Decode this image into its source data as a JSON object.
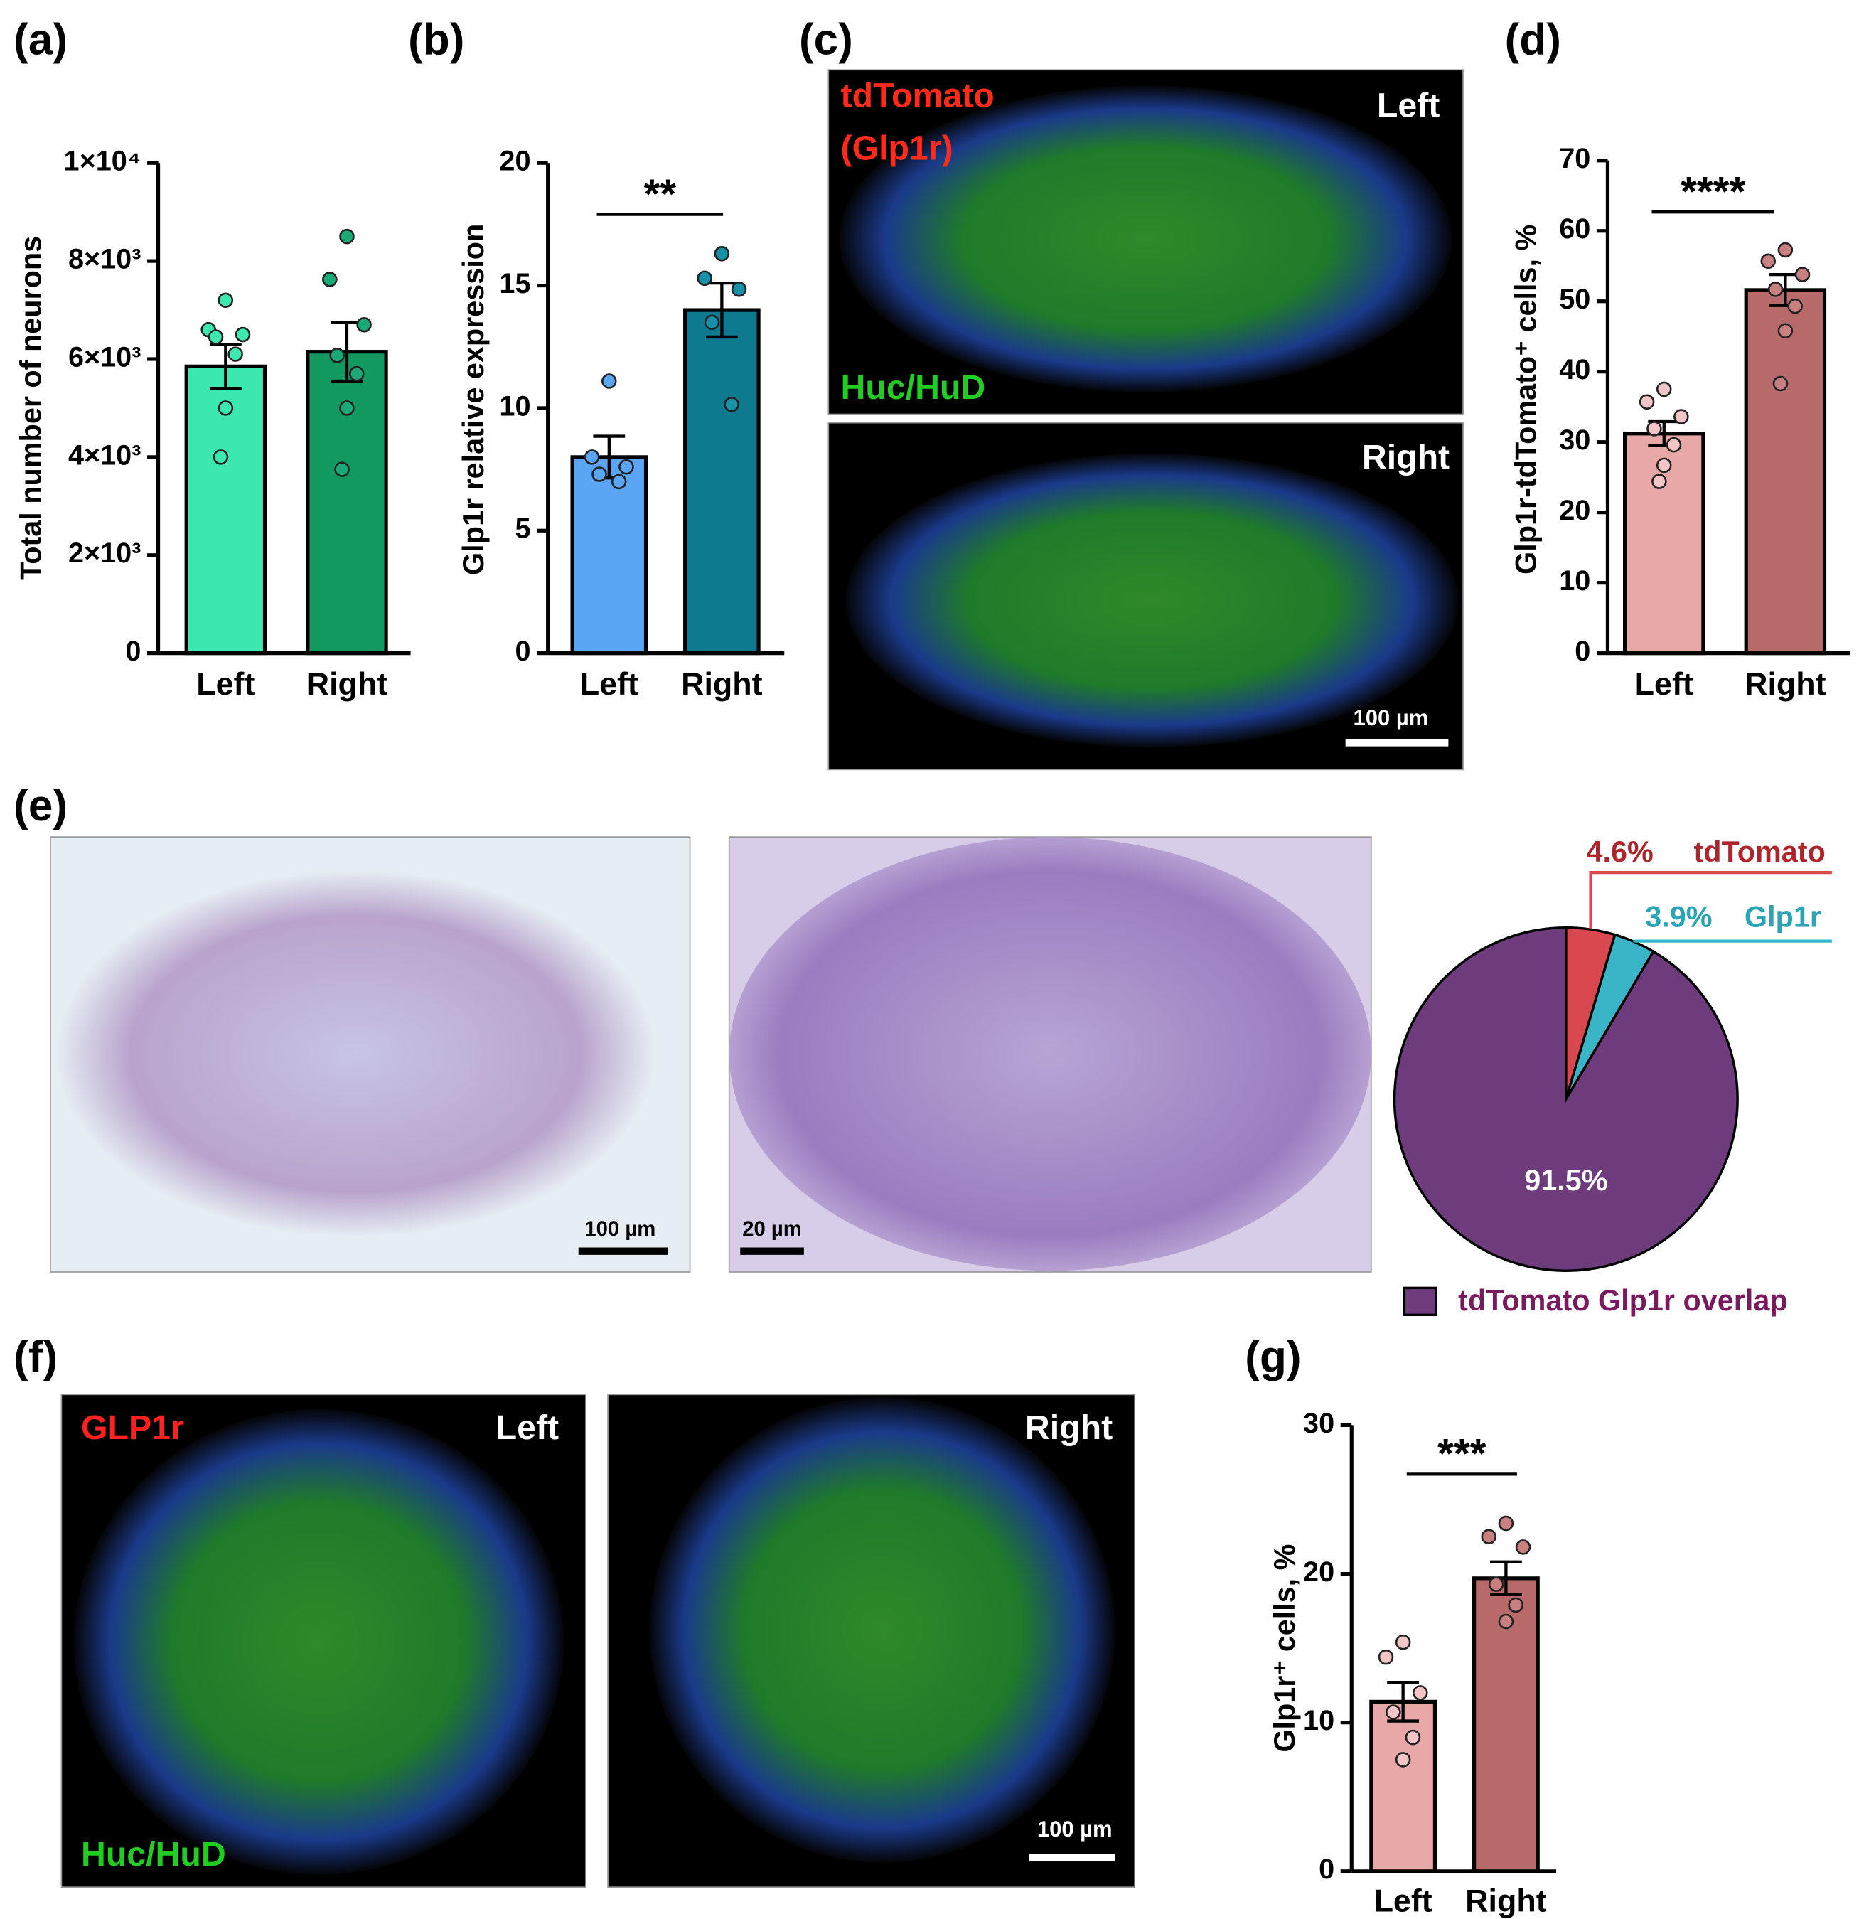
{
  "chart_data": [
    {
      "type": "bar",
      "panel": "(a)",
      "ylabel": "Total number of neurons",
      "categories": [
        "Left",
        "Right"
      ],
      "values": [
        5850,
        6150
      ],
      "errors": [
        450,
        600
      ],
      "points": [
        [
          7200,
          6600,
          6500,
          6450,
          6100,
          5000,
          4000
        ],
        [
          8500,
          7625,
          6700,
          6075,
          5700,
          5000,
          3750
        ]
      ],
      "colors": [
        "#3de8b0",
        "#119960"
      ],
      "point_colors": [
        "#3de8b0",
        "#1aa874"
      ],
      "ylim": [
        0,
        10000
      ],
      "yticks": [
        0,
        {
          "value": 2000,
          "label": "2×10³"
        },
        {
          "value": 4000,
          "label": "4×10³"
        },
        {
          "value": 6000,
          "label": "6×10³"
        },
        {
          "value": 8000,
          "label": "8×10³"
        },
        {
          "value": 10000,
          "label": "1×10⁴"
        }
      ]
    },
    {
      "type": "bar",
      "panel": "(b)",
      "ylabel": "Glp1r relative expression",
      "categories": [
        "Left",
        "Right"
      ],
      "values": [
        8.0,
        14.0
      ],
      "errors": [
        0.85,
        1.1
      ],
      "points": [
        [
          11.1,
          8.0,
          7.6,
          7.3,
          7.0
        ],
        [
          16.3,
          15.3,
          14.85,
          13.5,
          10.15
        ]
      ],
      "colors": [
        "#5aa6f5",
        "#0e7a90"
      ],
      "point_colors": [
        "#5aa6f5",
        "#1891a8"
      ],
      "ylim": [
        0,
        20
      ],
      "yticks": [
        0,
        5,
        10,
        15,
        20
      ],
      "significance": "**"
    },
    {
      "type": "bar",
      "panel": "(d)",
      "ylabel": "Glp1r-tdTomato⁺ cells, %",
      "categories": [
        "Left",
        "Right"
      ],
      "values": [
        31.2,
        51.6
      ],
      "errors": [
        1.7,
        2.2
      ],
      "points": [
        [
          37.5,
          35.7,
          33.6,
          31.9,
          29.6,
          26.7,
          24.4
        ],
        [
          57.3,
          55.7,
          53.8,
          51.7,
          49.3,
          45.8,
          38.3
        ]
      ],
      "colors": [
        "#e8a8a8",
        "#b86a6a"
      ],
      "point_colors": [
        "#f2c6c6",
        "#c88080"
      ],
      "ylim": [
        0,
        70
      ],
      "yticks": [
        0,
        10,
        20,
        30,
        40,
        50,
        60,
        70
      ],
      "significance": "****"
    },
    {
      "type": "bar",
      "panel": "(g)",
      "ylabel": "Glp1r⁺ cells, %",
      "categories": [
        "Left",
        "Right"
      ],
      "values": [
        11.4,
        19.7
      ],
      "errors": [
        1.3,
        1.1
      ],
      "points": [
        [
          15.4,
          14.4,
          12.0,
          10.7,
          9.0,
          7.5
        ],
        [
          23.4,
          22.5,
          21.8,
          19.3,
          17.9,
          16.8
        ]
      ],
      "colors": [
        "#e8a8a8",
        "#b86a6a"
      ],
      "point_colors": [
        "#f2c6c6",
        "#c88080"
      ],
      "ylim": [
        0,
        30
      ],
      "yticks": [
        0,
        10,
        20,
        30
      ],
      "significance": "***"
    },
    {
      "type": "pie",
      "categories": [
        "tdTomato",
        "Glp1r",
        "tdTomato Glp1r overlap"
      ],
      "values": [
        4.6,
        3.9,
        91.5
      ],
      "value_labels": [
        "4.6%",
        "3.9%",
        "91.5%"
      ],
      "colors": [
        "#d9474f",
        "#3ab5c8",
        "#6e3c7c"
      ]
    }
  ],
  "micrographs": [
    {
      "panel": "(c)",
      "labels": [
        "tdTomato",
        "(Glp1r)",
        "Left",
        "Huc/HuD",
        "Right",
        "100 µm"
      ]
    },
    {
      "panel": "(e)",
      "labels": [
        "100 µm",
        "20 µm"
      ]
    },
    {
      "panel": "(f)",
      "labels": [
        "GLP1r",
        "Left",
        "Huc/HuD",
        "Right",
        "100 µm"
      ]
    }
  ]
}
